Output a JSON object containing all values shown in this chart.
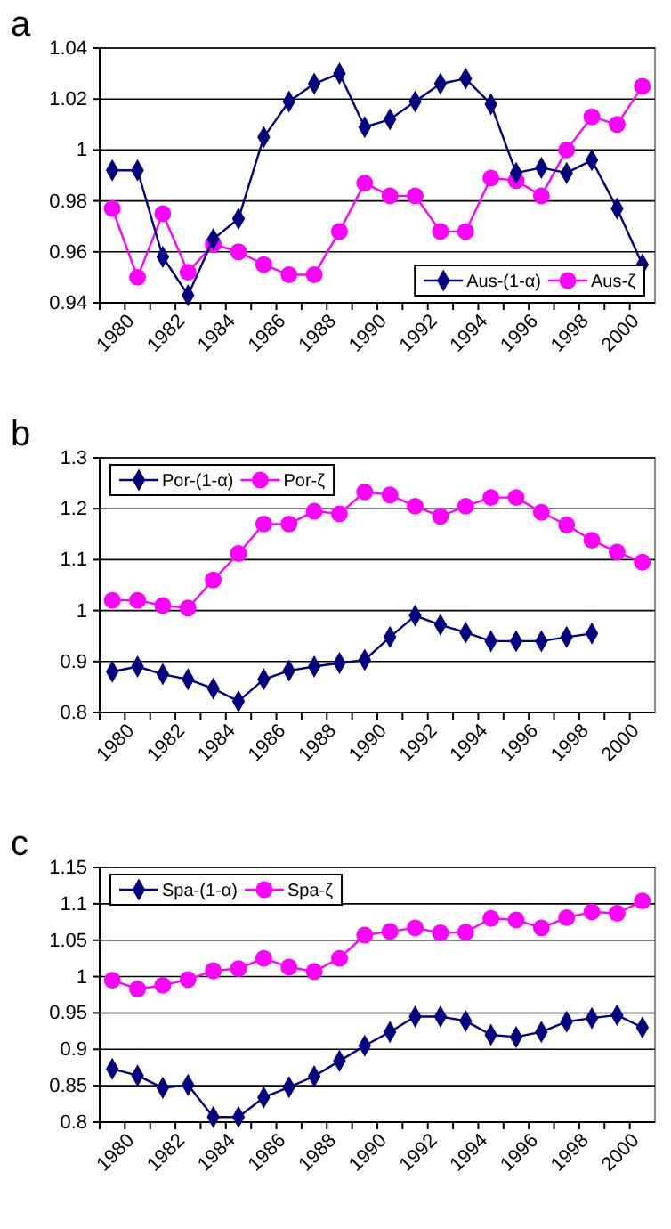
{
  "chart_data": [
    {
      "type": "line",
      "title": "a",
      "categories": [
        "1980",
        null,
        "1982",
        null,
        "1984",
        null,
        "1986",
        null,
        "1988",
        null,
        "1990",
        null,
        "1992",
        null,
        "1994",
        null,
        "1996",
        null,
        "1998",
        null,
        "2000",
        null
      ],
      "ylim": [
        0.94,
        1.04
      ],
      "yticks": [
        0.94,
        0.96,
        0.98,
        1,
        1.02,
        1.04
      ],
      "grid": "y",
      "legend": "bottom right",
      "series": [
        {
          "name": "Aus-(1-α)",
          "color": "#000080",
          "marker": "diamond",
          "values": [
            0.992,
            0.992,
            0.958,
            0.943,
            0.965,
            0.973,
            1.005,
            1.019,
            1.026,
            1.03,
            1.009,
            1.012,
            1.019,
            1.026,
            1.028,
            1.018,
            0.991,
            0.993,
            0.991,
            0.996,
            0.977,
            0.955
          ]
        },
        {
          "name": "Aus-ζ",
          "color": "#ff00ff",
          "marker": "circle",
          "values": [
            0.977,
            0.95,
            0.975,
            0.952,
            0.963,
            0.96,
            0.955,
            0.951,
            0.951,
            0.968,
            0.987,
            0.982,
            0.982,
            0.968,
            0.968,
            0.989,
            0.988,
            0.982,
            1.0,
            1.013,
            1.01,
            1.025
          ]
        }
      ]
    },
    {
      "type": "line",
      "title": "b",
      "categories": [
        "1980",
        null,
        "1982",
        null,
        "1984",
        null,
        "1986",
        null,
        "1988",
        null,
        "1990",
        null,
        "1992",
        null,
        "1994",
        null,
        "1996",
        null,
        "1998",
        null,
        "2000",
        null
      ],
      "ylim": [
        0.8,
        1.3
      ],
      "yticks": [
        0.8,
        0.9,
        1,
        1.1,
        1.2,
        1.3
      ],
      "grid": "y",
      "legend": "top left",
      "series": [
        {
          "name": "Por-(1-α)",
          "color": "#000080",
          "marker": "diamond",
          "values": [
            0.88,
            0.89,
            0.875,
            0.865,
            0.847,
            0.822,
            0.865,
            0.882,
            0.89,
            0.897,
            0.903,
            0.948,
            0.99,
            0.972,
            0.957,
            0.94,
            0.94,
            0.94,
            0.948,
            0.955,
            null,
            null
          ]
        },
        {
          "name": "Por-ζ",
          "color": "#ff00ff",
          "marker": "circle",
          "values": [
            1.02,
            1.02,
            1.01,
            1.005,
            1.06,
            1.112,
            1.17,
            1.17,
            1.195,
            1.19,
            1.233,
            1.227,
            1.205,
            1.185,
            1.205,
            1.222,
            1.222,
            1.193,
            1.168,
            1.138,
            1.115,
            1.095
          ]
        }
      ]
    },
    {
      "type": "line",
      "title": "c",
      "categories": [
        "1980",
        null,
        "1982",
        null,
        "1984",
        null,
        "1986",
        null,
        "1988",
        null,
        "1990",
        null,
        "1992",
        null,
        "1994",
        null,
        "1996",
        null,
        "1998",
        null,
        "2000",
        null
      ],
      "ylim": [
        0.8,
        1.15
      ],
      "yticks": [
        0.8,
        0.85,
        0.9,
        0.95,
        1,
        1.05,
        1.1,
        1.15
      ],
      "grid": "y",
      "legend": "top left",
      "series": [
        {
          "name": "Spa-(1-α)",
          "color": "#000080",
          "marker": "diamond",
          "values": [
            0.873,
            0.864,
            0.847,
            0.851,
            0.807,
            0.807,
            0.834,
            0.848,
            0.863,
            0.884,
            0.905,
            0.924,
            0.945,
            0.945,
            0.939,
            0.92,
            0.917,
            0.924,
            0.938,
            0.943,
            0.947,
            0.93
          ]
        },
        {
          "name": "Spa-ζ",
          "color": "#ff00ff",
          "marker": "circle",
          "values": [
            0.995,
            0.983,
            0.988,
            0.996,
            1.008,
            1.011,
            1.025,
            1.013,
            1.007,
            1.025,
            1.057,
            1.062,
            1.067,
            1.06,
            1.061,
            1.08,
            1.078,
            1.067,
            1.081,
            1.089,
            1.087,
            1.104
          ]
        }
      ]
    }
  ]
}
